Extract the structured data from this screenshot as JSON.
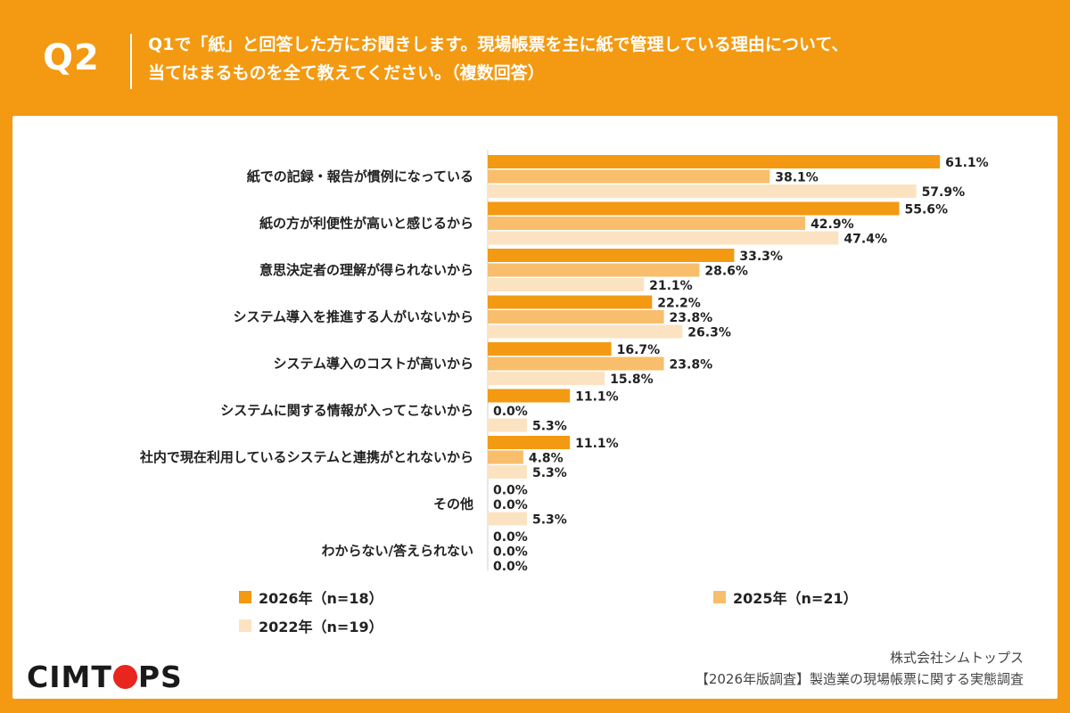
{
  "header": {
    "qnum": "Q2",
    "line1": "Q1で「紙」と回答した方にお聞きします。現場帳票を主に紙で管理している理由について、",
    "line2": "当てはまるものを全て教えてください。（複数回答）"
  },
  "colors": {
    "background": "#f39a12",
    "s2026": "#f39a12",
    "s2025": "#f8be6b",
    "s2022": "#fbe3c2"
  },
  "chart_data": {
    "type": "bar",
    "orientation": "horizontal",
    "categories": [
      "紙での記録・報告が慣例になっている",
      "紙の方が利便性が高いと感じるから",
      "意思決定者の理解が得られないから",
      "システム導入を推進する人がいないから",
      "システム導入のコストが高いから",
      "システムに関する情報が入ってこないから",
      "社内で現在利用しているシステムと連携がとれないから",
      "その他",
      "わからない/答えられない"
    ],
    "series": [
      {
        "name": "2026年（n=18）",
        "values": [
          61.1,
          55.6,
          33.3,
          22.2,
          16.7,
          11.1,
          11.1,
          0.0,
          0.0
        ]
      },
      {
        "name": "2025年（n=21）",
        "values": [
          38.1,
          42.9,
          28.6,
          23.8,
          23.8,
          0.0,
          4.8,
          0.0,
          0.0
        ]
      },
      {
        "name": "2022年（n=19）",
        "values": [
          57.9,
          47.4,
          21.1,
          26.3,
          15.8,
          5.3,
          5.3,
          5.3,
          0.0
        ]
      }
    ],
    "value_suffix": "%",
    "xlim": [
      0,
      100
    ],
    "legend": "bottom"
  },
  "footer": {
    "logo_left": "CIMT",
    "logo_right": "PS",
    "company": "株式会社シムトップス",
    "survey": "【2026年版調査】製造業の現場帳票に関する実態調査"
  }
}
